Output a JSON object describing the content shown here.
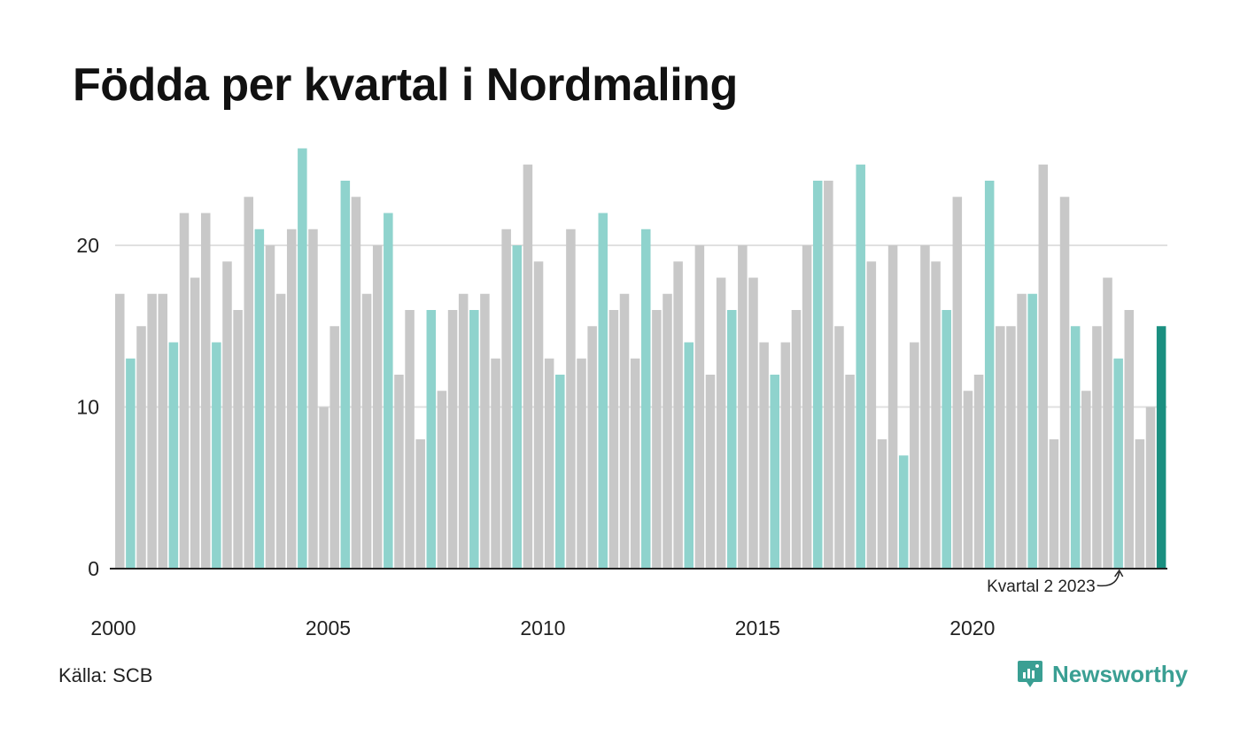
{
  "title": "Födda per kvartal i Nordmaling",
  "source": "Källa: SCB",
  "brand": "Newsworthy",
  "colors": {
    "highlight": "#8fd3cd",
    "other": "#c8c8c8",
    "latest": "#1a8f80",
    "grid": "#e0e0e0",
    "axis": "#222222",
    "brand": "#3a9f93"
  },
  "chart_data": {
    "type": "bar",
    "title": "Födda per kvartal i Nordmaling",
    "xlabel": "",
    "ylabel": "",
    "ylim": [
      0,
      26
    ],
    "yticks": [
      0,
      10,
      20
    ],
    "xtick_labels": [
      "2000",
      "2005",
      "2010",
      "2015",
      "2020"
    ],
    "grid": true,
    "highlight_quarter": 2,
    "start_year": 2000,
    "start_quarter": 1,
    "annotation": "Kvartal 2 2023",
    "values": [
      17,
      13,
      15,
      17,
      17,
      14,
      22,
      18,
      22,
      14,
      19,
      16,
      23,
      21,
      20,
      17,
      21,
      26,
      21,
      10,
      15,
      24,
      23,
      17,
      20,
      22,
      12,
      16,
      8,
      16,
      11,
      16,
      17,
      16,
      17,
      13,
      21,
      20,
      25,
      19,
      13,
      12,
      21,
      13,
      15,
      22,
      16,
      17,
      13,
      21,
      16,
      17,
      19,
      14,
      20,
      12,
      18,
      16,
      20,
      18,
      14,
      12,
      14,
      16,
      20,
      24,
      24,
      15,
      12,
      25,
      19,
      8,
      20,
      7,
      14,
      20,
      19,
      16,
      23,
      11,
      12,
      24,
      15,
      15,
      17,
      17,
      25,
      8,
      23,
      15,
      11,
      15,
      18,
      13,
      16,
      8,
      10,
      15
    ]
  }
}
